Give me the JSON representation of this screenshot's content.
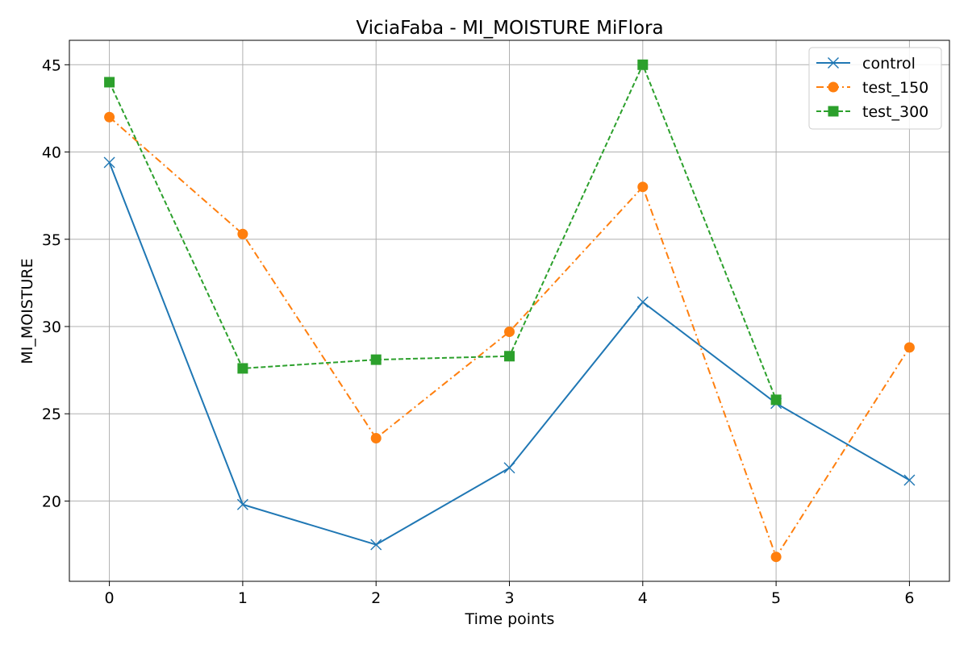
{
  "chart_data": {
    "type": "line",
    "title": "ViciaFaba - MI_MOISTURE MiFlora",
    "xlabel": "Time points",
    "ylabel": "MI_MOISTURE",
    "x_ticks": [
      0,
      1,
      2,
      3,
      4,
      5,
      6
    ],
    "y_ticks": [
      20,
      25,
      30,
      35,
      40,
      45
    ],
    "xlim": [
      -0.3,
      6.3
    ],
    "ylim": [
      15.4,
      46.4
    ],
    "grid": true,
    "legend_position": "top-right",
    "series": [
      {
        "name": "control",
        "color": "#1f77b4",
        "line_style": "solid",
        "marker": "x",
        "x": [
          0,
          1,
          2,
          3,
          4,
          5,
          6
        ],
        "y": [
          39.4,
          19.8,
          17.5,
          21.9,
          31.4,
          25.6,
          21.2
        ]
      },
      {
        "name": "test_150",
        "color": "#ff7f0e",
        "line_style": "dashdot",
        "marker": "circle",
        "x": [
          0,
          1,
          2,
          3,
          4,
          5,
          6
        ],
        "y": [
          42.0,
          35.3,
          23.6,
          29.7,
          38.0,
          16.8,
          28.8
        ]
      },
      {
        "name": "test_300",
        "color": "#2ca02c",
        "line_style": "dashed",
        "marker": "square",
        "x": [
          0,
          1,
          2,
          3,
          4,
          5
        ],
        "y": [
          44.0,
          27.6,
          28.1,
          28.3,
          45.0,
          25.8
        ]
      }
    ]
  }
}
